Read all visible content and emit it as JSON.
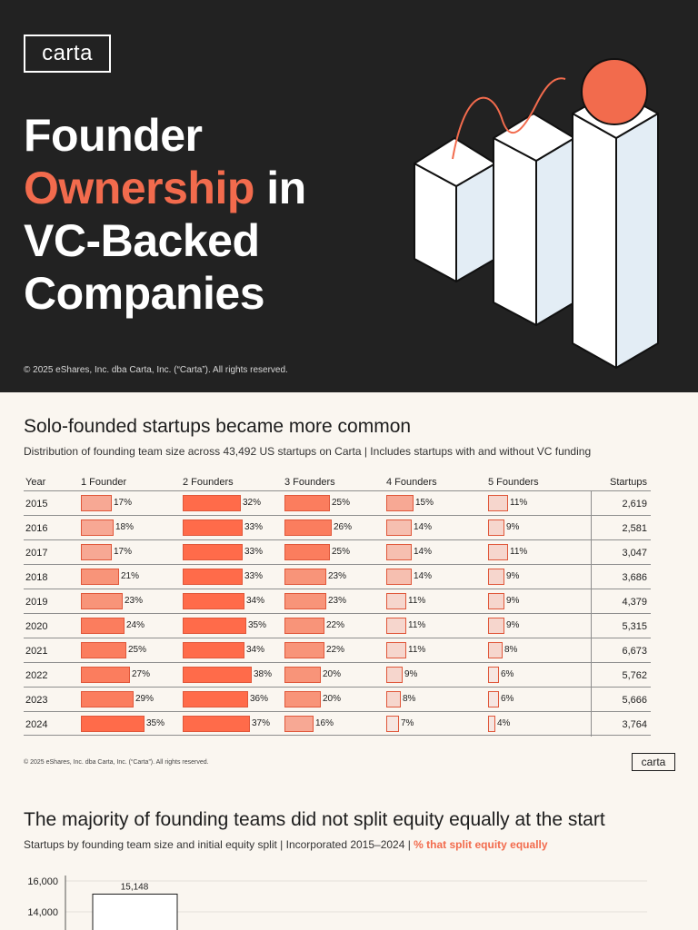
{
  "hero": {
    "logo": "carta",
    "title_line1": "Founder",
    "title_accent": "Ownership",
    "title_line2_rest": " in",
    "title_line3": "VC-Backed",
    "title_line4": "Companies",
    "copyright": "© 2025 eShares, Inc. dba Carta, Inc. (“Carta”). All rights reserved.",
    "colors": {
      "background": "#222222",
      "accent": "#f26b4d"
    }
  },
  "section1": {
    "title": "Solo-founded startups became more common",
    "subtitle": "Distribution of founding team size across 43,492 US startups on Carta | Includes startups with and without VC funding",
    "columns": [
      "Year",
      "1 Founder",
      "2 Founders",
      "3 Founders",
      "4 Founders",
      "5 Founders",
      "Startups"
    ],
    "rows": [
      {
        "year": "2015",
        "f1": "17%",
        "f2": "32%",
        "f3": "25%",
        "f4": "15%",
        "f5": "11%",
        "startups": "2,619"
      },
      {
        "year": "2016",
        "f1": "18%",
        "f2": "33%",
        "f3": "26%",
        "f4": "14%",
        "f5": "9%",
        "startups": "2,581"
      },
      {
        "year": "2017",
        "f1": "17%",
        "f2": "33%",
        "f3": "25%",
        "f4": "14%",
        "f5": "11%",
        "startups": "3,047"
      },
      {
        "year": "2018",
        "f1": "21%",
        "f2": "33%",
        "f3": "23%",
        "f4": "14%",
        "f5": "9%",
        "startups": "3,686"
      },
      {
        "year": "2019",
        "f1": "23%",
        "f2": "34%",
        "f3": "23%",
        "f4": "11%",
        "f5": "9%",
        "startups": "4,379"
      },
      {
        "year": "2020",
        "f1": "24%",
        "f2": "35%",
        "f3": "22%",
        "f4": "11%",
        "f5": "9%",
        "startups": "5,315"
      },
      {
        "year": "2021",
        "f1": "25%",
        "f2": "34%",
        "f3": "22%",
        "f4": "11%",
        "f5": "8%",
        "startups": "6,673"
      },
      {
        "year": "2022",
        "f1": "27%",
        "f2": "38%",
        "f3": "20%",
        "f4": "9%",
        "f5": "6%",
        "startups": "5,762"
      },
      {
        "year": "2023",
        "f1": "29%",
        "f2": "36%",
        "f3": "20%",
        "f4": "8%",
        "f5": "6%",
        "startups": "5,666"
      },
      {
        "year": "2024",
        "f1": "35%",
        "f2": "37%",
        "f3": "16%",
        "f4": "7%",
        "f5": "4%",
        "startups": "3,764"
      }
    ],
    "footer": "© 2025 eShares, Inc. dba Carta, Inc. (“Carta”). All rights reserved.",
    "footer_logo": "carta"
  },
  "section2": {
    "title": "The majority of founding teams did not split equity equally at the start",
    "subtitle": "Startups by founding team size and initial equity split | Incorporated 2015–2024 | ",
    "subtitle_highlight": "% that split equity equally"
  },
  "chart_data": {
    "type": "bar",
    "title": "The majority of founding teams did not split equity equally at the start",
    "y_ticks": [
      "16,000",
      "14,000"
    ],
    "ylim": [
      0,
      16000
    ],
    "values": [
      15148
    ],
    "value_labels": [
      "15,148"
    ]
  }
}
